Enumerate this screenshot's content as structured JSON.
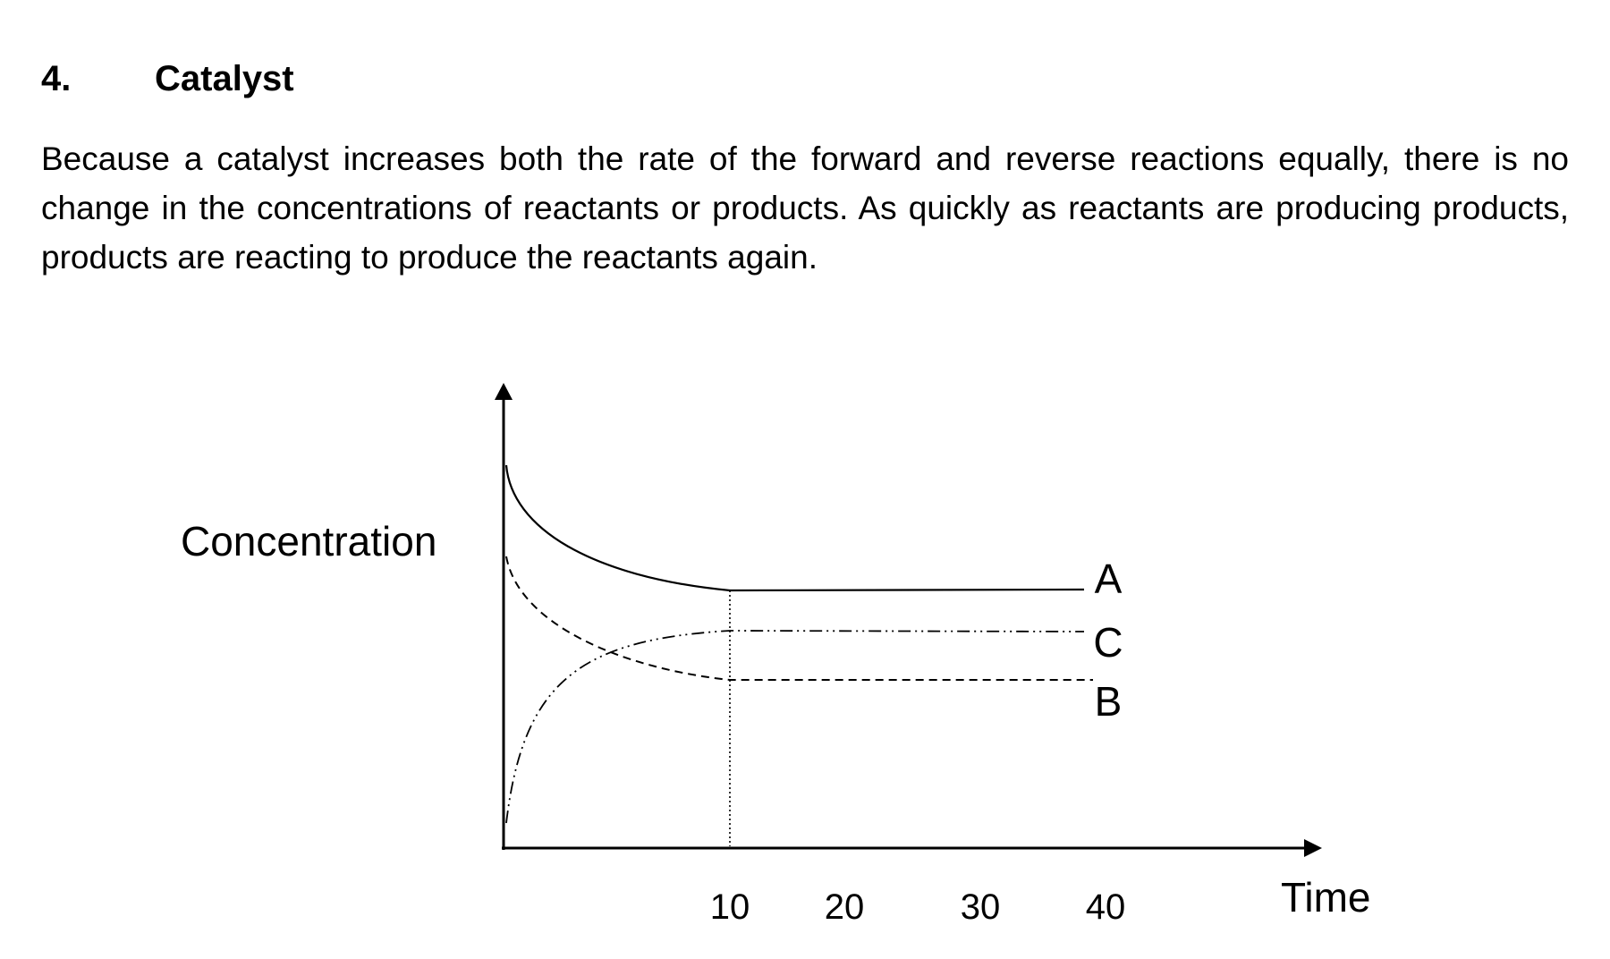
{
  "section": {
    "number": "4.",
    "title": "Catalyst"
  },
  "paragraph": "Because a catalyst increases both the rate of the forward and reverse reactions equally, there is no change in the concentrations of reactants or products. As quickly as reactants are producing products, products are reacting to produce the reactants again.",
  "figure": {
    "y_axis_label": "Concentration",
    "x_axis_label": "Time",
    "x_tick_labels": [
      "10",
      "20",
      "30",
      "40"
    ],
    "curve_labels": {
      "A": "A",
      "B": "B",
      "C": "C"
    }
  }
}
